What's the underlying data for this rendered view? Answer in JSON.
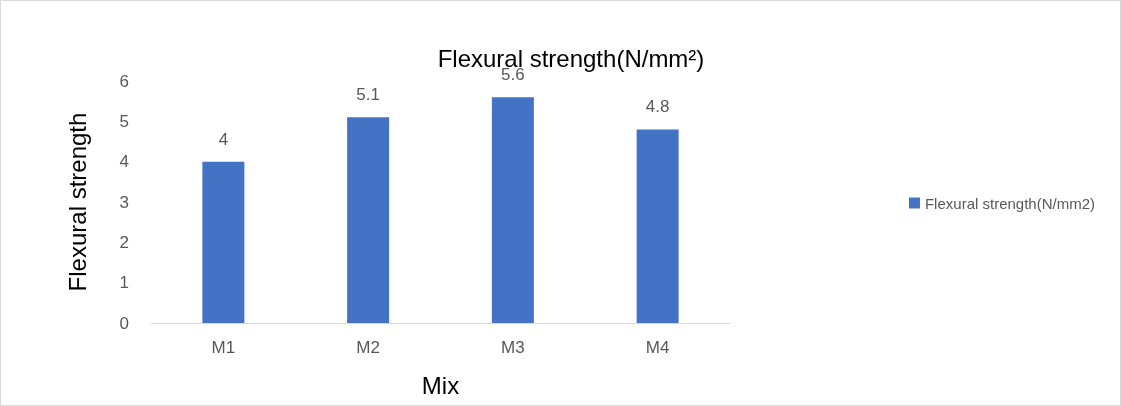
{
  "chart_data": {
    "type": "bar",
    "title": "Flexural strength(N/mm²)",
    "xlabel": "Mix",
    "ylabel": "Flexural strength",
    "categories": [
      "M1",
      "M2",
      "M3",
      "M4"
    ],
    "series": [
      {
        "name": "Flexural strength(N/mm2)",
        "color": "#4472c4",
        "values": [
          4,
          5.1,
          5.6,
          4.8
        ]
      }
    ],
    "ylim": [
      0,
      6
    ],
    "yticks": [
      0,
      1,
      2,
      3,
      4,
      5,
      6
    ],
    "grid": false,
    "legend": "right",
    "data_labels": true
  }
}
